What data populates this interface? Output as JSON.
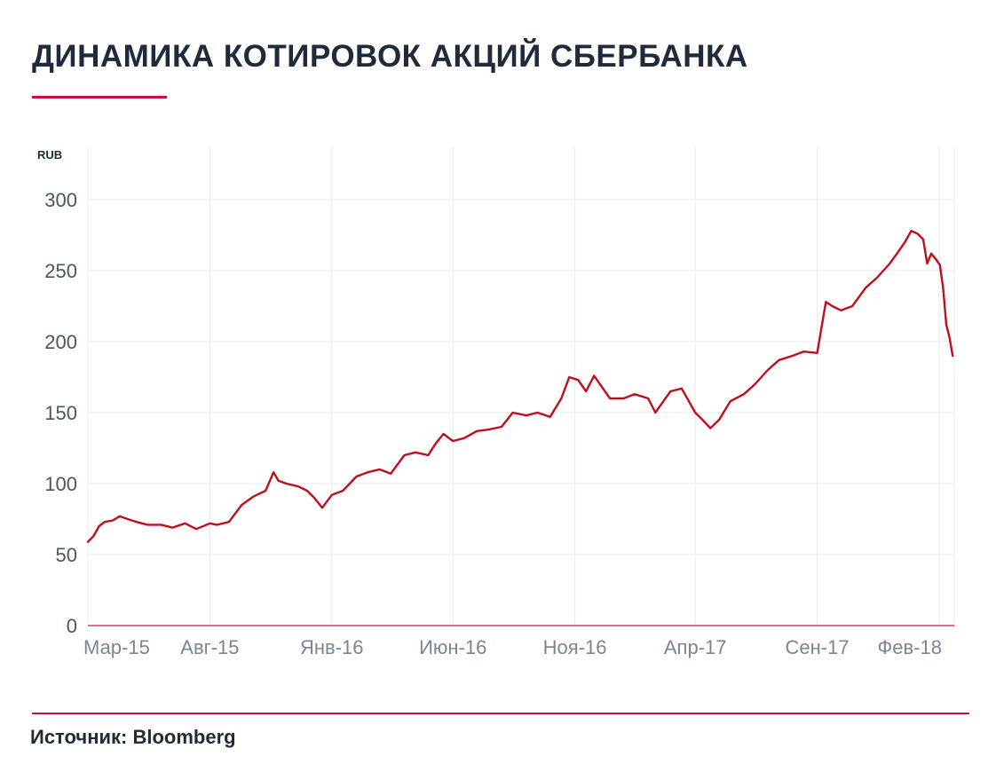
{
  "colors": {
    "title": "#1f2b3a",
    "accent": "#c8103e",
    "line": "#c00e1c",
    "grid": "#e8ebee",
    "baseline": "#e36a95",
    "tick_text": "#4a5565",
    "x_tick_text": "#7b8594"
  },
  "header": {
    "title": "ДИНАМИКА КОТИРОВОК АКЦИЙ СБЕРБАНКА"
  },
  "footer": {
    "source": "Источник: Bloomberg"
  },
  "chart_data": {
    "type": "line",
    "title": "ДИНАМИКА КОТИРОВОК АКЦИЙ СБЕРБАНКА",
    "ylabel": "RUB",
    "xlabel": "",
    "ylim": [
      0,
      300
    ],
    "yticks": [
      0,
      50,
      100,
      150,
      200,
      250,
      300
    ],
    "xlim": [
      "2015-03-01",
      "2018-02-20"
    ],
    "xticks": [
      {
        "label": "Мар-15",
        "date": "2015-03-01"
      },
      {
        "label": "Авг-15",
        "date": "2015-08-01"
      },
      {
        "label": "Янв-16",
        "date": "2016-01-01"
      },
      {
        "label": "Июн-16",
        "date": "2016-06-01"
      },
      {
        "label": "Ноя-16",
        "date": "2016-11-01"
      },
      {
        "label": "Апр-17",
        "date": "2017-04-01"
      },
      {
        "label": "Сен-17",
        "date": "2017-09-01"
      },
      {
        "label": "Фев-18",
        "date": "2018-02-01"
      }
    ],
    "grid": true,
    "series": [
      {
        "points": [
          [
            "2015-03-01",
            59
          ],
          [
            "2015-03-08",
            63
          ],
          [
            "2015-03-15",
            70
          ],
          [
            "2015-03-22",
            73
          ],
          [
            "2015-04-01",
            74
          ],
          [
            "2015-04-10",
            77
          ],
          [
            "2015-04-20",
            75
          ],
          [
            "2015-05-01",
            73
          ],
          [
            "2015-05-15",
            71
          ],
          [
            "2015-06-01",
            71
          ],
          [
            "2015-06-15",
            69
          ],
          [
            "2015-07-01",
            72
          ],
          [
            "2015-07-15",
            68
          ],
          [
            "2015-08-01",
            72
          ],
          [
            "2015-08-10",
            71
          ],
          [
            "2015-08-25",
            73
          ],
          [
            "2015-09-10",
            85
          ],
          [
            "2015-09-25",
            91
          ],
          [
            "2015-10-10",
            95
          ],
          [
            "2015-10-20",
            108
          ],
          [
            "2015-10-26",
            102
          ],
          [
            "2015-11-05",
            100
          ],
          [
            "2015-11-20",
            98
          ],
          [
            "2015-12-01",
            95
          ],
          [
            "2015-12-10",
            90
          ],
          [
            "2015-12-20",
            83
          ],
          [
            "2016-01-01",
            92
          ],
          [
            "2016-01-15",
            95
          ],
          [
            "2016-02-01",
            105
          ],
          [
            "2016-02-15",
            108
          ],
          [
            "2016-03-01",
            110
          ],
          [
            "2016-03-15",
            107
          ],
          [
            "2016-04-01",
            120
          ],
          [
            "2016-04-15",
            122
          ],
          [
            "2016-05-01",
            120
          ],
          [
            "2016-05-10",
            128
          ],
          [
            "2016-05-20",
            135
          ],
          [
            "2016-06-01",
            130
          ],
          [
            "2016-06-15",
            132
          ],
          [
            "2016-07-01",
            137
          ],
          [
            "2016-07-15",
            138
          ],
          [
            "2016-08-01",
            140
          ],
          [
            "2016-08-15",
            150
          ],
          [
            "2016-09-01",
            148
          ],
          [
            "2016-09-15",
            150
          ],
          [
            "2016-10-01",
            147
          ],
          [
            "2016-10-15",
            160
          ],
          [
            "2016-10-25",
            175
          ],
          [
            "2016-11-05",
            173
          ],
          [
            "2016-11-15",
            165
          ],
          [
            "2016-11-25",
            176
          ],
          [
            "2016-12-05",
            168
          ],
          [
            "2016-12-15",
            160
          ],
          [
            "2017-01-01",
            160
          ],
          [
            "2017-01-15",
            163
          ],
          [
            "2017-02-01",
            160
          ],
          [
            "2017-02-10",
            150
          ],
          [
            "2017-02-20",
            158
          ],
          [
            "2017-03-01",
            165
          ],
          [
            "2017-03-15",
            167
          ],
          [
            "2017-04-01",
            150
          ],
          [
            "2017-04-10",
            145
          ],
          [
            "2017-04-20",
            139
          ],
          [
            "2017-05-01",
            145
          ],
          [
            "2017-05-15",
            158
          ],
          [
            "2017-06-01",
            163
          ],
          [
            "2017-06-15",
            170
          ],
          [
            "2017-07-01",
            180
          ],
          [
            "2017-07-15",
            187
          ],
          [
            "2017-08-01",
            190
          ],
          [
            "2017-08-15",
            193
          ],
          [
            "2017-09-01",
            192
          ],
          [
            "2017-09-08",
            215
          ],
          [
            "2017-09-12",
            228
          ],
          [
            "2017-09-20",
            225
          ],
          [
            "2017-10-01",
            222
          ],
          [
            "2017-10-15",
            225
          ],
          [
            "2017-11-01",
            238
          ],
          [
            "2017-11-15",
            245
          ],
          [
            "2017-12-01",
            255
          ],
          [
            "2017-12-10",
            262
          ],
          [
            "2017-12-20",
            270
          ],
          [
            "2017-12-28",
            278
          ],
          [
            "2018-01-05",
            276
          ],
          [
            "2018-01-12",
            272
          ],
          [
            "2018-01-17",
            255
          ],
          [
            "2018-01-22",
            262
          ],
          [
            "2018-01-28",
            258
          ],
          [
            "2018-02-02",
            254
          ],
          [
            "2018-02-06",
            238
          ],
          [
            "2018-02-10",
            212
          ],
          [
            "2018-02-14",
            203
          ],
          [
            "2018-02-18",
            190
          ]
        ]
      }
    ]
  }
}
